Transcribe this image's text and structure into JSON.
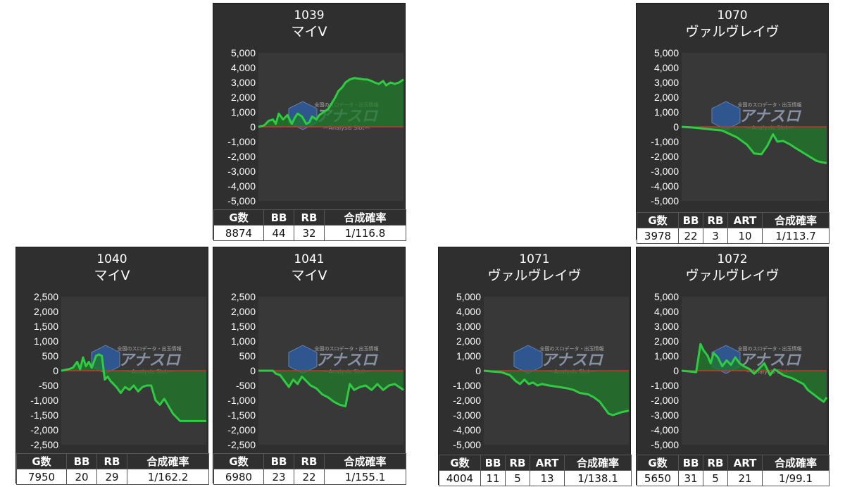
{
  "colors": {
    "panel_bg": "#2f2f2f",
    "plot_bg": "#383838",
    "line": "#2ecc40",
    "fill": "#1f7a2a",
    "zero": "#d0312d",
    "text": "#ffffff"
  },
  "watermark": {
    "main": "アナスロ",
    "sub": "Analysis Slot",
    "top": "全国のスロデータ・出玉情報"
  },
  "panels": [
    {
      "number": "1039",
      "name": "マイV",
      "headers": [
        "G数",
        "BB",
        "RB",
        "合成確率"
      ],
      "values": [
        "8874",
        "44",
        "32",
        "1/116.8"
      ],
      "chart_data": {
        "type": "area",
        "ylim": [
          -5000,
          5000
        ],
        "yticks": [
          "5,000",
          "4,000",
          "3,000",
          "2,000",
          "1,000",
          "0",
          "-1,000",
          "-2,000",
          "-3,000",
          "-4,000",
          "-5,000"
        ],
        "x": [
          0,
          4,
          7,
          10,
          12,
          14,
          17,
          20,
          23,
          25,
          27,
          30,
          33,
          35,
          37,
          40,
          42,
          45,
          48,
          50,
          53,
          55,
          58,
          60,
          63,
          66,
          70,
          73,
          75,
          78,
          80,
          83,
          86,
          88,
          91,
          94,
          97,
          100
        ],
        "y": [
          0,
          100,
          400,
          500,
          200,
          900,
          500,
          800,
          200,
          600,
          900,
          700,
          200,
          300,
          700,
          500,
          800,
          1000,
          1200,
          1500,
          2000,
          2400,
          2700,
          3000,
          3200,
          3300,
          3250,
          3200,
          3200,
          3100,
          3000,
          2900,
          3100,
          2800,
          3000,
          2900,
          3000,
          3200
        ]
      }
    },
    {
      "number": "1070",
      "name": "ヴァルヴレイヴ",
      "headers": [
        "G数",
        "BB",
        "RB",
        "ART",
        "合成確率"
      ],
      "values": [
        "3978",
        "22",
        "3",
        "10",
        "1/113.7"
      ],
      "chart_data": {
        "type": "area",
        "ylim": [
          -5000,
          5000
        ],
        "yticks": [
          "5,000",
          "4,000",
          "3,000",
          "2,000",
          "1,000",
          "0",
          "-1,000",
          "-2,000",
          "-3,000",
          "-4,000",
          "-5,000"
        ],
        "x": [
          0,
          8,
          18,
          28,
          38,
          45,
          50,
          55,
          59,
          63,
          66,
          70,
          75,
          78,
          83,
          88,
          93,
          97,
          100
        ],
        "y": [
          0,
          -50,
          -150,
          -250,
          -700,
          -1200,
          -1800,
          -1850,
          -1300,
          -500,
          -1000,
          -950,
          -1200,
          -1400,
          -1700,
          -2000,
          -2300,
          -2400,
          -2450
        ]
      }
    },
    {
      "number": "1040",
      "name": "マイV",
      "headers": [
        "G数",
        "BB",
        "RB",
        "合成確率"
      ],
      "values": [
        "7950",
        "20",
        "29",
        "1/162.2"
      ],
      "chart_data": {
        "type": "area",
        "ylim": [
          -2500,
          2500
        ],
        "yticks": [
          "2,500",
          "2,000",
          "1,500",
          "1,000",
          "500",
          "0",
          "-500",
          "-1,000",
          "-1,500",
          "-2,000",
          "-2,500"
        ],
        "x": [
          0,
          5,
          8,
          11,
          13,
          15,
          17,
          19,
          21,
          24,
          26,
          28,
          30,
          32,
          34,
          36,
          38,
          41,
          44,
          47,
          50,
          53,
          56,
          59,
          62,
          65,
          68,
          71,
          74,
          77,
          80,
          82,
          85,
          88,
          91,
          94,
          97,
          100
        ],
        "y": [
          0,
          50,
          100,
          300,
          50,
          450,
          150,
          300,
          100,
          500,
          550,
          500,
          -300,
          -200,
          -350,
          -450,
          -550,
          -750,
          -550,
          -650,
          -500,
          -700,
          -550,
          -500,
          -500,
          -1000,
          -1150,
          -950,
          -1200,
          -1450,
          -1600,
          -1700,
          -1700,
          -1700,
          -1700,
          -1700,
          -1700,
          -1700
        ]
      }
    },
    {
      "number": "1041",
      "name": "マイV",
      "headers": [
        "G数",
        "BB",
        "RB",
        "合成確率"
      ],
      "values": [
        "6980",
        "23",
        "22",
        "1/155.1"
      ],
      "chart_data": {
        "type": "area",
        "ylim": [
          -2500,
          2500
        ],
        "yticks": [
          "2,500",
          "2,000",
          "1,500",
          "1,000",
          "500",
          "0",
          "-500",
          "-1,000",
          "-1,500",
          "-2,000",
          "-2,500"
        ],
        "x": [
          0,
          5,
          10,
          12,
          15,
          18,
          21,
          24,
          27,
          30,
          33,
          36,
          40,
          44,
          48,
          52,
          56,
          60,
          63,
          66,
          70,
          74,
          78,
          82,
          86,
          90,
          94,
          97,
          100
        ],
        "y": [
          0,
          0,
          0,
          -100,
          -150,
          -350,
          -550,
          -300,
          -450,
          -200,
          -350,
          -500,
          -600,
          -800,
          -900,
          -1050,
          -1150,
          -1200,
          -450,
          -650,
          -550,
          -500,
          -650,
          -450,
          -650,
          -500,
          -450,
          -550,
          -650
        ]
      }
    },
    {
      "number": "1071",
      "name": "ヴァルヴレイヴ",
      "headers": [
        "G数",
        "BB",
        "RB",
        "ART",
        "合成確率"
      ],
      "values": [
        "4004",
        "11",
        "5",
        "13",
        "1/138.1"
      ],
      "chart_data": {
        "type": "area",
        "ylim": [
          -5000,
          5000
        ],
        "yticks": [
          "5,000",
          "4,000",
          "3,000",
          "2,000",
          "1,000",
          "0",
          "-1,000",
          "-2,000",
          "-3,000",
          "-4,000",
          "-5,000"
        ],
        "x": [
          0,
          5,
          12,
          18,
          22,
          25,
          28,
          31,
          34,
          37,
          40,
          45,
          52,
          58,
          62,
          66,
          72,
          76,
          80,
          83,
          86,
          89,
          92,
          95,
          100
        ],
        "y": [
          0,
          -50,
          -100,
          -300,
          -700,
          -900,
          -600,
          -900,
          -800,
          -1000,
          -900,
          -1000,
          -1100,
          -1200,
          -1300,
          -1500,
          -1600,
          -1800,
          -2100,
          -2500,
          -2900,
          -3000,
          -2900,
          -2800,
          -2700
        ]
      }
    },
    {
      "number": "1072",
      "name": "ヴァルヴレイヴ",
      "headers": [
        "G数",
        "BB",
        "RB",
        "ART",
        "合成確率"
      ],
      "values": [
        "5650",
        "31",
        "5",
        "21",
        "1/99.1"
      ],
      "chart_data": {
        "type": "area",
        "ylim": [
          -5000,
          5000
        ],
        "yticks": [
          "5,000",
          "4,000",
          "3,000",
          "2,000",
          "1,000",
          "0",
          "-1,000",
          "-2,000",
          "-3,000",
          "-4,000",
          "-5,000"
        ],
        "x": [
          0,
          5,
          10,
          13,
          15,
          18,
          20,
          22,
          25,
          28,
          31,
          34,
          37,
          40,
          43,
          47,
          50,
          53,
          57,
          61,
          64,
          67,
          70,
          73,
          76,
          80,
          84,
          87,
          91,
          95,
          98,
          100
        ],
        "y": [
          0,
          -50,
          -100,
          1800,
          1400,
          1000,
          500,
          1200,
          900,
          300,
          700,
          400,
          900,
          500,
          300,
          100,
          -200,
          100,
          500,
          -300,
          100,
          -100,
          -300,
          -400,
          -500,
          -700,
          -900,
          -1300,
          -1600,
          -1900,
          -2100,
          -1800
        ]
      }
    }
  ]
}
